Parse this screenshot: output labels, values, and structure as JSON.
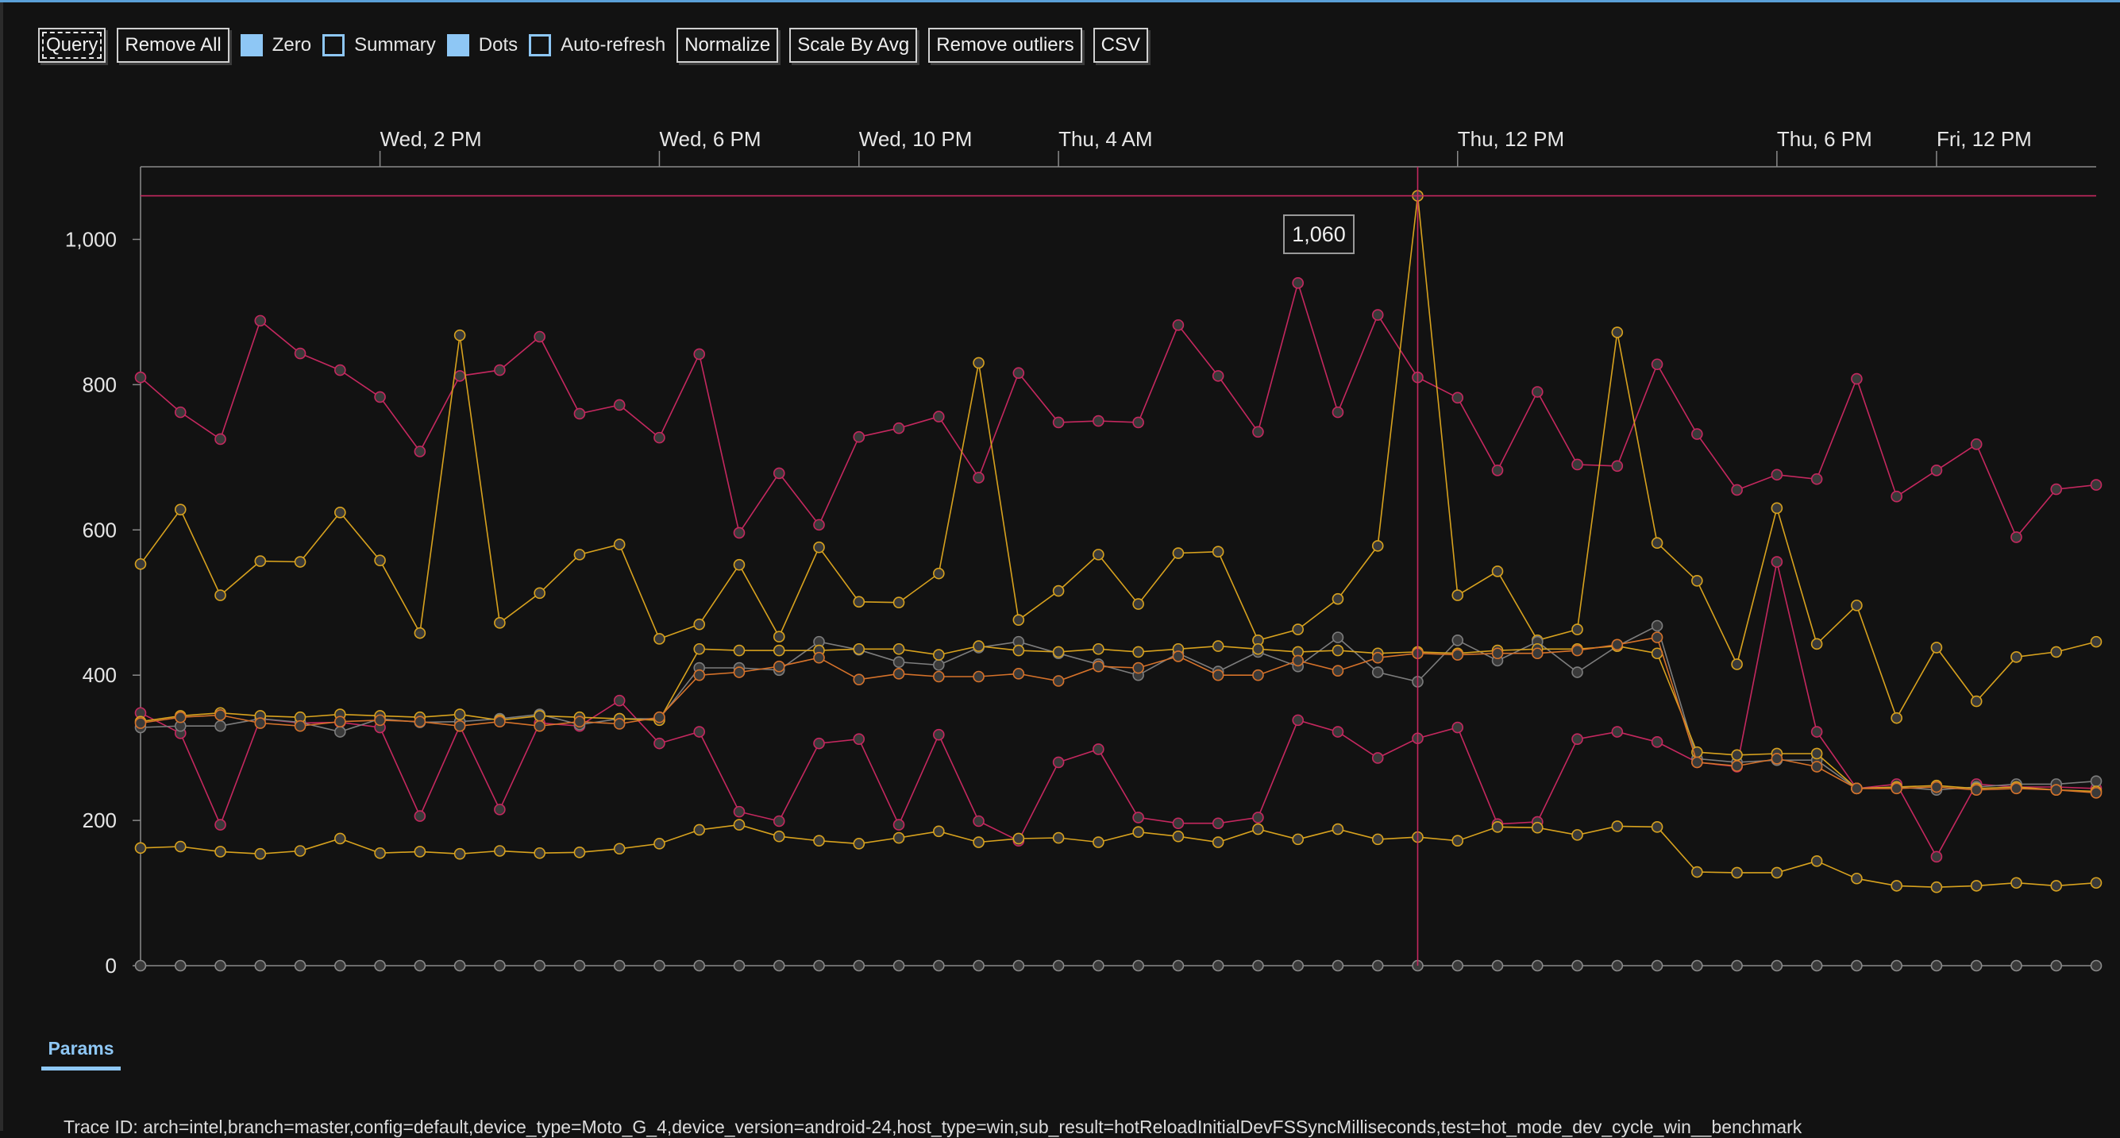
{
  "toolbar": {
    "query_label": "Query",
    "remove_all_label": "Remove All",
    "zero_label": "Zero",
    "summary_label": "Summary",
    "dots_label": "Dots",
    "auto_refresh_label": "Auto-refresh",
    "normalize_label": "Normalize",
    "scale_by_avg_label": "Scale By Avg",
    "remove_outliers_label": "Remove outliers",
    "csv_label": "CSV",
    "zero_checked": true,
    "summary_checked": false,
    "dots_checked": true,
    "auto_refresh_checked": false
  },
  "tooltip": {
    "value": "1,060"
  },
  "params_tab": {
    "label": "Params"
  },
  "trace": {
    "text": "Trace ID: arch=intel,branch=master,config=default,device_type=Moto_G_4,device_version=android-24,host_type=win,sub_result=hotReloadInitialDevFSSyncMilliseconds,test=hot_mode_dev_cycle_win__benchmark"
  },
  "colors": {
    "background": "#121212",
    "grid": "#8a8a8a",
    "crosshair": "#c5285f",
    "accent": "#8ec7f5",
    "pink": "#c5285f",
    "gold": "#d8a21e",
    "grey": "#7d7d7d",
    "orange": "#d6722a"
  },
  "chart_data": {
    "type": "line",
    "title": "",
    "xlabel": "",
    "ylabel": "",
    "ylim": [
      0,
      1100
    ],
    "y_ticks": [
      0,
      200,
      400,
      600,
      800,
      1000
    ],
    "y_tick_labels": [
      "0",
      "200",
      "400",
      "600",
      "800",
      "1,000"
    ],
    "x_ticks": [
      {
        "label": "Wed, 2 PM",
        "index": 6
      },
      {
        "label": "Wed, 6 PM",
        "index": 13
      },
      {
        "label": "Wed, 10 PM",
        "index": 18
      },
      {
        "label": "Thu, 4 AM",
        "index": 23
      },
      {
        "label": "Thu, 12 PM",
        "index": 33
      },
      {
        "label": "Thu, 6 PM",
        "index": 41
      },
      {
        "label": "Fri, 12 PM",
        "index": 45
      }
    ],
    "n_points": 50,
    "crosshair": {
      "index": 32,
      "value": 1060
    },
    "series": [
      {
        "name": "pink-top",
        "color": "#c5285f",
        "values": [
          810,
          762,
          725,
          888,
          843,
          820,
          783,
          708,
          812,
          820,
          866,
          760,
          772,
          727,
          842,
          596,
          678,
          607,
          728,
          740,
          756,
          672,
          816,
          748,
          750,
          748,
          882,
          812,
          735,
          940,
          762,
          896,
          810,
          782,
          682,
          790,
          690,
          688,
          828,
          732,
          655,
          676,
          670,
          808,
          646,
          682,
          718,
          590,
          656,
          662
        ]
      },
      {
        "name": "gold-upper",
        "color": "#d8a21e",
        "values": [
          553,
          628,
          510,
          557,
          556,
          624,
          558,
          458,
          868,
          472,
          513,
          566,
          580,
          450,
          470,
          552,
          453,
          576,
          501,
          500,
          540,
          830,
          476,
          516,
          566,
          498,
          568,
          570,
          448,
          463,
          505,
          578,
          1060,
          510,
          543,
          448,
          463,
          872,
          582,
          530,
          415,
          630,
          443,
          496,
          341,
          438,
          364,
          425,
          432,
          446
        ]
      },
      {
        "name": "pink-lower",
        "color": "#c5285f",
        "values": [
          348,
          320,
          194,
          340,
          334,
          335,
          328,
          206,
          330,
          215,
          334,
          330,
          365,
          306,
          322,
          212,
          199,
          306,
          312,
          194,
          318,
          199,
          172,
          280,
          298,
          204,
          196,
          196,
          204,
          338,
          322,
          286,
          313,
          328,
          195,
          198,
          312,
          322,
          308,
          280,
          274,
          556,
          322,
          244,
          250,
          150,
          250,
          246,
          246,
          244
        ]
      },
      {
        "name": "gold-lower",
        "color": "#d8a21e",
        "values": [
          162,
          164,
          157,
          154,
          158,
          175,
          155,
          157,
          154,
          158,
          155,
          156,
          161,
          168,
          187,
          194,
          178,
          172,
          168,
          176,
          185,
          170,
          175,
          176,
          170,
          184,
          178,
          170,
          188,
          174,
          188,
          174,
          177,
          172,
          191,
          190,
          180,
          192,
          191,
          129,
          128,
          128,
          144,
          120,
          110,
          108,
          110,
          114,
          110,
          114
        ]
      },
      {
        "name": "grey-mid",
        "color": "#7d7d7d",
        "values": [
          328,
          330,
          330,
          340,
          335,
          322,
          340,
          335,
          336,
          340,
          346,
          332,
          340,
          340,
          410,
          410,
          407,
          446,
          435,
          418,
          414,
          438,
          446,
          430,
          415,
          400,
          430,
          405,
          432,
          412,
          452,
          404,
          391,
          448,
          420,
          446,
          404,
          440,
          468,
          285,
          280,
          283,
          283,
          244,
          246,
          242,
          246,
          250,
          250,
          254
        ]
      },
      {
        "name": "gold-mid",
        "color": "#d8a21e",
        "values": [
          336,
          344,
          348,
          344,
          342,
          346,
          344,
          342,
          346,
          338,
          344,
          342,
          340,
          338,
          436,
          434,
          434,
          434,
          436,
          436,
          428,
          440,
          434,
          432,
          436,
          432,
          436,
          440,
          436,
          432,
          434,
          430,
          432,
          430,
          434,
          436,
          436,
          440,
          430,
          294,
          290,
          292,
          292,
          244,
          246,
          248,
          244,
          246,
          242,
          240
        ]
      },
      {
        "name": "orange-mid",
        "color": "#d6722a",
        "values": [
          334,
          342,
          345,
          334,
          330,
          336,
          338,
          336,
          330,
          336,
          330,
          336,
          333,
          342,
          400,
          404,
          412,
          424,
          394,
          402,
          398,
          398,
          402,
          392,
          412,
          410,
          426,
          400,
          400,
          420,
          406,
          424,
          430,
          428,
          430,
          430,
          434,
          442,
          452,
          280,
          275,
          285,
          274,
          244,
          244,
          246,
          242,
          244,
          242,
          238
        ]
      },
      {
        "name": "zero-line",
        "color": "#8a8a8a",
        "values": [
          0,
          0,
          0,
          0,
          0,
          0,
          0,
          0,
          0,
          0,
          0,
          0,
          0,
          0,
          0,
          0,
          0,
          0,
          0,
          0,
          0,
          0,
          0,
          0,
          0,
          0,
          0,
          0,
          0,
          0,
          0,
          0,
          0,
          0,
          0,
          0,
          0,
          0,
          0,
          0,
          0,
          0,
          0,
          0,
          0,
          0,
          0,
          0,
          0,
          0
        ]
      }
    ]
  }
}
